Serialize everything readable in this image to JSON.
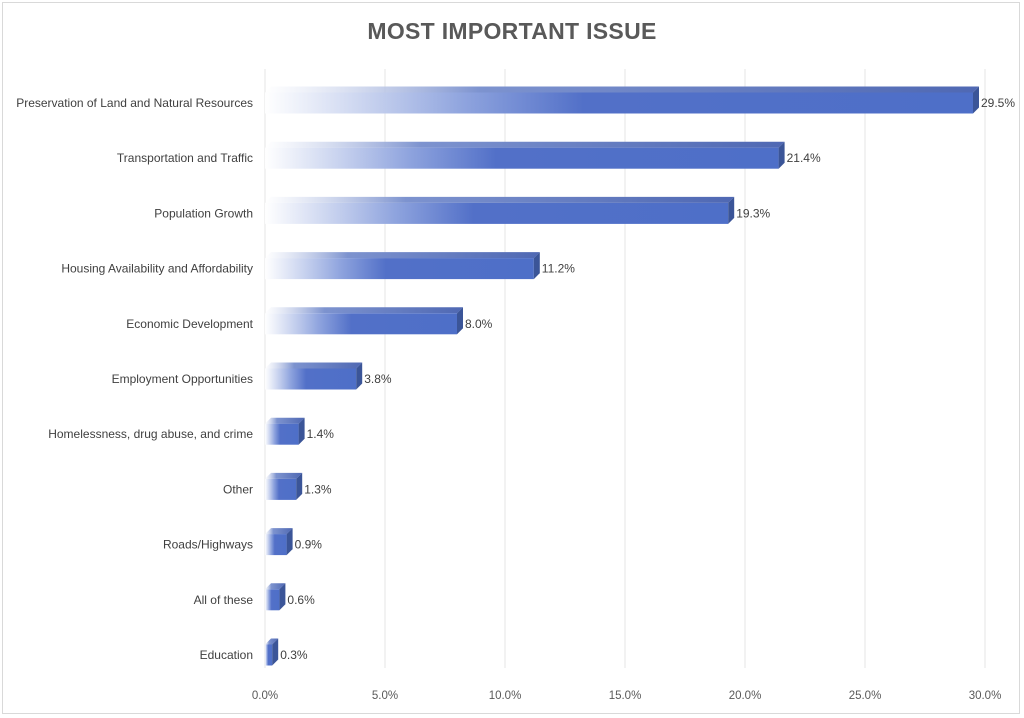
{
  "chart_data": {
    "type": "bar",
    "orientation": "horizontal",
    "title": "MOST IMPORTANT ISSUE",
    "categories": [
      "Preservation of Land and Natural Resources",
      "Transportation and Traffic",
      "Population Growth",
      "Housing Availability and Affordability",
      "Economic Development",
      "Employment Opportunities",
      "Homelessness, drug abuse, and crime",
      "Other",
      "Roads/Highways",
      "All of these",
      "Education"
    ],
    "values": [
      29.5,
      21.4,
      19.3,
      11.2,
      8.0,
      3.8,
      1.4,
      1.3,
      0.9,
      0.6,
      0.3
    ],
    "data_labels": [
      "29.5%",
      "21.4%",
      "19.3%",
      "11.2%",
      "8.0%",
      "3.8%",
      "1.4%",
      "1.3%",
      "0.9%",
      "0.6%",
      "0.3%"
    ],
    "xlim": [
      0,
      30
    ],
    "x_ticks": [
      0,
      5,
      10,
      15,
      20,
      25,
      30
    ],
    "x_tick_labels": [
      "0.0%",
      "5.0%",
      "10.0%",
      "15.0%",
      "20.0%",
      "25.0%",
      "30.0%"
    ],
    "xlabel": "",
    "ylabel": "",
    "grid": "vertical",
    "legend": "none",
    "colors": {
      "bar": "#4e6fc8",
      "bar_end": "#3b5598",
      "bar_top": "#6a86d3",
      "grid": "#e6e6e6",
      "title": "#595959"
    }
  }
}
